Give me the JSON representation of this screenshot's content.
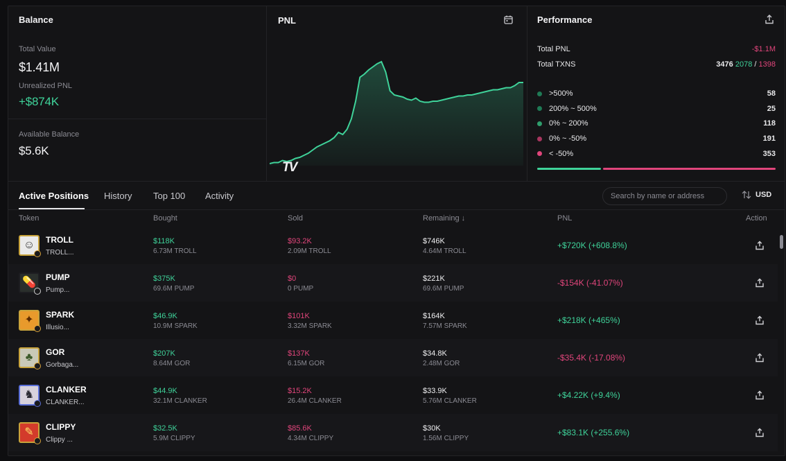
{
  "balance": {
    "title": "Balance",
    "total_value_label": "Total Value",
    "total_value": "$1.41M",
    "unrealized_label": "Unrealized PNL",
    "unrealized": "+$874K",
    "available_label": "Available Balance",
    "available": "$5.6K"
  },
  "pnl_panel": {
    "title": "PNL",
    "watermark": "TV"
  },
  "performance": {
    "title": "Performance",
    "total_pnl_label": "Total PNL",
    "total_pnl": "-$1.1M",
    "total_txns_label": "Total TXNS",
    "txns_total": "3476",
    "txns_buy": "2078",
    "txns_sep": "/",
    "txns_sell": "1398",
    "buckets": [
      {
        "label": ">500%",
        "count": "58",
        "color": "#1f7a55"
      },
      {
        "label": "200% ~ 500%",
        "count": "25",
        "color": "#1f7a55"
      },
      {
        "label": "0% ~ 200%",
        "count": "118",
        "color": "#2f9d6c"
      },
      {
        "label": "0% ~ -50%",
        "count": "191",
        "color": "#a8365f"
      },
      {
        "label": "< -50%",
        "count": "353",
        "color": "#e0457b"
      }
    ]
  },
  "tabs": [
    "Active Positions",
    "History",
    "Top 100",
    "Activity"
  ],
  "search": {
    "placeholder": "Search by name or address"
  },
  "currency": "USD",
  "columns": {
    "token": "Token",
    "bought": "Bought",
    "sold": "Sold",
    "remaining": "Remaining ↓",
    "pnl": "PNL",
    "action": "Action"
  },
  "positions": [
    {
      "symbol": "TROLL",
      "name": "TROLL...",
      "bought": "$118K",
      "bought_qty": "6.73M TROLL",
      "sold": "$93.2K",
      "sold_qty": "2.09M TROLL",
      "remaining": "$746K",
      "remaining_qty": "4.64M TROLL",
      "pnl": "+$720K (+608.8%)",
      "pnl_sign": "pos"
    },
    {
      "symbol": "PUMP",
      "name": "Pump...",
      "bought": "$375K",
      "bought_qty": "69.6M PUMP",
      "sold": "$0",
      "sold_qty": "0 PUMP",
      "remaining": "$221K",
      "remaining_qty": "69.6M PUMP",
      "pnl": "-$154K (-41.07%)",
      "pnl_sign": "neg"
    },
    {
      "symbol": "SPARK",
      "name": "Illusio...",
      "bought": "$46.9K",
      "bought_qty": "10.9M SPARK",
      "sold": "$101K",
      "sold_qty": "3.32M SPARK",
      "remaining": "$164K",
      "remaining_qty": "7.57M SPARK",
      "pnl": "+$218K (+465%)",
      "pnl_sign": "pos"
    },
    {
      "symbol": "GOR",
      "name": "Gorbaga...",
      "bought": "$207K",
      "bought_qty": "8.64M GOR",
      "sold": "$137K",
      "sold_qty": "6.15M GOR",
      "remaining": "$34.8K",
      "remaining_qty": "2.48M GOR",
      "pnl": "-$35.4K (-17.08%)",
      "pnl_sign": "neg"
    },
    {
      "symbol": "CLANKER",
      "name": "CLANKER...",
      "bought": "$44.9K",
      "bought_qty": "32.1M CLANKER",
      "sold": "$15.2K",
      "sold_qty": "26.4M CLANKER",
      "remaining": "$33.9K",
      "remaining_qty": "5.76M CLANKER",
      "pnl": "+$4.22K (+9.4%)",
      "pnl_sign": "pos"
    },
    {
      "symbol": "CLIPPY",
      "name": "Clippy ...",
      "bought": "$32.5K",
      "bought_qty": "5.9M CLIPPY",
      "sold": "$85.6K",
      "sold_qty": "4.34M CLIPPY",
      "remaining": "$30K",
      "remaining_qty": "1.56M CLIPPY",
      "pnl": "+$83.1K (+255.6%)",
      "pnl_sign": "pos"
    }
  ],
  "chart_data": {
    "type": "area",
    "title": "PNL",
    "series": [
      {
        "name": "PNL",
        "values": [
          0.02,
          0.03,
          0.03,
          0.05,
          0.04,
          0.05,
          0.07,
          0.08,
          0.1,
          0.12,
          0.15,
          0.18,
          0.2,
          0.22,
          0.24,
          0.27,
          0.32,
          0.3,
          0.35,
          0.45,
          0.62,
          0.85,
          0.88,
          0.92,
          0.95,
          0.98,
          1.0,
          0.9,
          0.72,
          0.68,
          0.67,
          0.66,
          0.64,
          0.63,
          0.65,
          0.62,
          0.61,
          0.61,
          0.62,
          0.62,
          0.63,
          0.64,
          0.65,
          0.66,
          0.67,
          0.67,
          0.68,
          0.68,
          0.69,
          0.7,
          0.71,
          0.72,
          0.73,
          0.73,
          0.74,
          0.75,
          0.75,
          0.77,
          0.8,
          0.8
        ]
      }
    ],
    "xlabel": "",
    "ylabel": "",
    "ylim": [
      0,
      1
    ]
  }
}
